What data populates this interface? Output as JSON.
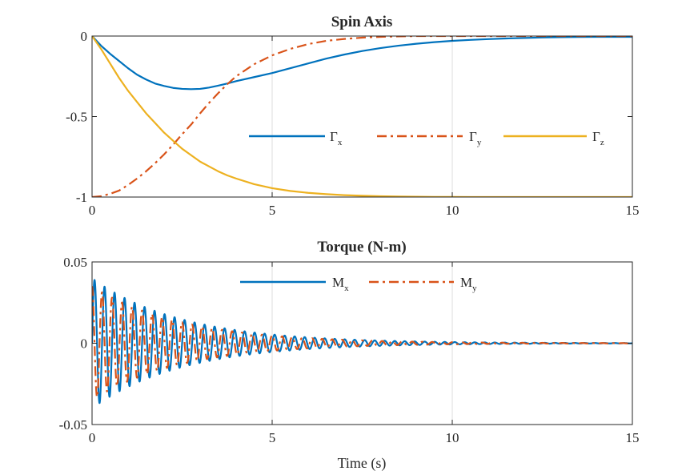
{
  "chart_data": [
    {
      "type": "line",
      "title": "Spin Axis",
      "xlabel": "",
      "ylabel": "",
      "xlim": [
        0,
        15
      ],
      "ylim": [
        -1,
        0
      ],
      "xticks": [
        0,
        5,
        10,
        15
      ],
      "yticks": [
        -1,
        -0.5,
        0
      ],
      "xtick_labels": [
        "0",
        "5",
        "10",
        "15"
      ],
      "ytick_labels": [
        "-1",
        "-0.5",
        "0"
      ],
      "grid": "vertical",
      "legend": "middle-right, horizontal",
      "series": [
        {
          "name": "Γx",
          "name_main": "Γ",
          "name_sub": "x",
          "color": "#0072BD",
          "style": "solid",
          "x": [
            0,
            0.25,
            0.5,
            0.75,
            1,
            1.25,
            1.5,
            1.75,
            2,
            2.25,
            2.5,
            2.75,
            3,
            3.25,
            3.5,
            3.75,
            4,
            4.5,
            5,
            5.5,
            6,
            6.5,
            7,
            7.5,
            8,
            8.5,
            9,
            9.5,
            10,
            10.5,
            11,
            11.5,
            12,
            12.5,
            13,
            13.5,
            14,
            14.5,
            15
          ],
          "y": [
            0,
            -0.06,
            -0.11,
            -0.155,
            -0.2,
            -0.24,
            -0.27,
            -0.295,
            -0.31,
            -0.322,
            -0.328,
            -0.33,
            -0.328,
            -0.32,
            -0.308,
            -0.295,
            -0.28,
            -0.255,
            -0.23,
            -0.2,
            -0.17,
            -0.14,
            -0.115,
            -0.093,
            -0.075,
            -0.06,
            -0.048,
            -0.038,
            -0.03,
            -0.024,
            -0.019,
            -0.015,
            -0.012,
            -0.009,
            -0.007,
            -0.006,
            -0.005,
            -0.005,
            -0.005
          ]
        },
        {
          "name": "Γy",
          "name_main": "Γ",
          "name_sub": "y",
          "color": "#D95319",
          "style": "dashdot",
          "x": [
            0,
            0.25,
            0.5,
            0.75,
            1,
            1.25,
            1.5,
            1.75,
            2,
            2.25,
            2.5,
            2.75,
            3,
            3.25,
            3.5,
            3.75,
            4,
            4.5,
            5,
            5.5,
            6,
            6.5,
            7,
            7.5,
            8,
            8.5,
            9,
            9.5,
            10,
            10.5,
            11,
            11.5,
            12,
            12.5,
            13,
            13.5,
            14,
            14.5,
            15
          ],
          "y": [
            -1,
            -0.995,
            -0.98,
            -0.96,
            -0.925,
            -0.885,
            -0.84,
            -0.79,
            -0.735,
            -0.675,
            -0.61,
            -0.55,
            -0.48,
            -0.415,
            -0.355,
            -0.3,
            -0.25,
            -0.175,
            -0.12,
            -0.08,
            -0.05,
            -0.03,
            -0.018,
            -0.01,
            -0.005,
            -0.002,
            0,
            0,
            0,
            0,
            0,
            0,
            0,
            0,
            0,
            0,
            0,
            0,
            0
          ]
        },
        {
          "name": "Γz",
          "name_main": "Γ",
          "name_sub": "z",
          "color": "#EDB120",
          "style": "solid",
          "x": [
            0,
            0.25,
            0.5,
            0.75,
            1,
            1.25,
            1.5,
            1.75,
            2,
            2.25,
            2.5,
            2.75,
            3,
            3.25,
            3.5,
            3.75,
            4,
            4.5,
            5,
            5.5,
            6,
            6.5,
            7,
            7.5,
            8,
            8.5,
            9,
            9.5,
            10,
            10.5,
            11,
            11.5,
            12,
            12.5,
            13,
            13.5,
            14,
            14.5,
            15
          ],
          "y": [
            0,
            -0.08,
            -0.17,
            -0.26,
            -0.34,
            -0.41,
            -0.48,
            -0.54,
            -0.6,
            -0.65,
            -0.7,
            -0.74,
            -0.78,
            -0.81,
            -0.84,
            -0.865,
            -0.885,
            -0.92,
            -0.945,
            -0.962,
            -0.974,
            -0.982,
            -0.988,
            -0.992,
            -0.995,
            -0.997,
            -0.998,
            -0.999,
            -0.999,
            -1,
            -1,
            -1,
            -1,
            -1,
            -1,
            -1,
            -1,
            -1,
            -1
          ]
        }
      ]
    },
    {
      "type": "line",
      "title": "Torque (N-m)",
      "xlabel": "Time (s)",
      "ylabel": "",
      "xlim": [
        0,
        15
      ],
      "ylim": [
        -0.05,
        0.05
      ],
      "xticks": [
        0,
        5,
        10,
        15
      ],
      "yticks": [
        -0.05,
        0,
        0.05
      ],
      "xtick_labels": [
        "0",
        "5",
        "10",
        "15"
      ],
      "ytick_labels": [
        "-0.05",
        "0",
        "0.05"
      ],
      "grid": "vertical",
      "legend": "top-center, horizontal",
      "series": [
        {
          "name": "Mx",
          "name_main": "M",
          "name_sub": "x",
          "color": "#0072BD",
          "style": "solid",
          "model": {
            "form": "A0*exp(-t/tau)*sin(2*pi*f*t + phase)",
            "amplitude": 0.04,
            "decay_time_constant": 2.5,
            "oscillation_frequency": 3.6,
            "phase": 0,
            "peak": {
              "t": 0.15,
              "value": 0.044
            },
            "trough": {
              "t": 0.05,
              "value": -0.022
            }
          }
        },
        {
          "name": "My",
          "name_main": "M",
          "name_sub": "y",
          "color": "#D95319",
          "style": "dashdot",
          "model": {
            "form": "A0*exp(-t/tau)*sin(2*pi*f*t + phase)",
            "amplitude": 0.035,
            "decay_time_constant": 2.5,
            "oscillation_frequency": 3.6,
            "phase": 1.5708
          }
        }
      ]
    }
  ]
}
